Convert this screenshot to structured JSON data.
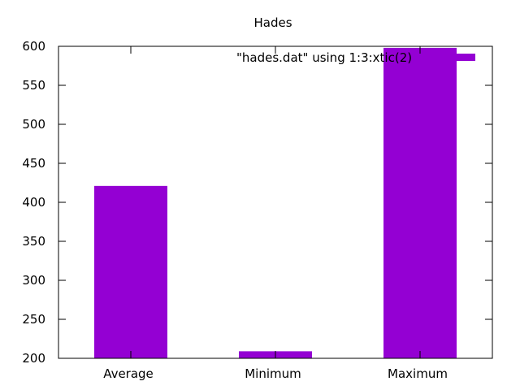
{
  "chart_data": {
    "type": "bar",
    "title": "Hades",
    "xlabel": "",
    "ylabel": "",
    "categories": [
      "Average",
      "Minimum",
      "Maximum"
    ],
    "series": [
      {
        "name": "\"hades.dat\" using 1:3:xtic(2)",
        "values": [
          421,
          209,
          598
        ],
        "color": "#9400d3"
      }
    ],
    "ylim": [
      200,
      600
    ],
    "yticks": [
      200,
      250,
      300,
      350,
      400,
      450,
      500,
      550,
      600
    ],
    "grid": false,
    "legend": "top-right"
  }
}
